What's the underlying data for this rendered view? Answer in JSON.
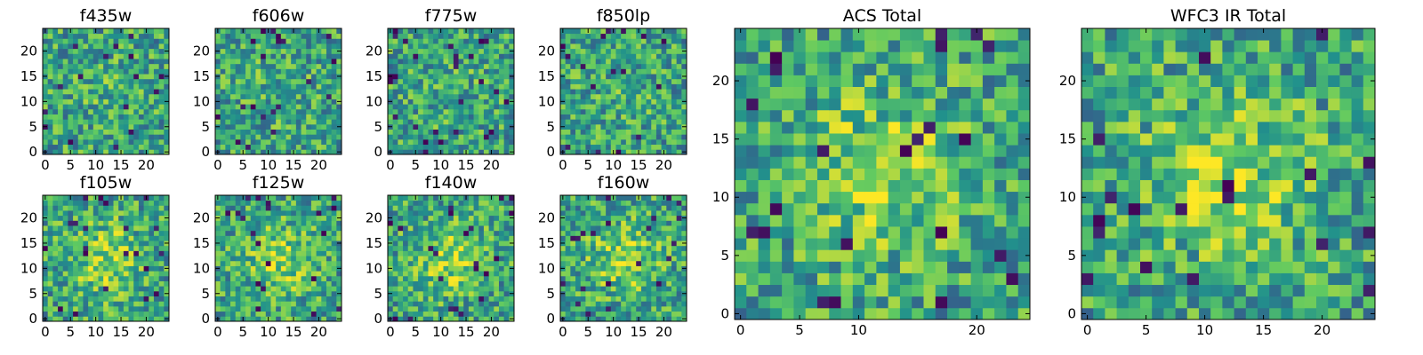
{
  "chart_data": {
    "type": "heatmap",
    "colormap": "viridis",
    "colormap_stops": [
      "#440154",
      "#3b528b",
      "#21918c",
      "#5ec962",
      "#fde725"
    ],
    "panels": [
      {
        "title": "f435w",
        "xticks": [
          0,
          5,
          10,
          15,
          20
        ],
        "yticks": [
          0,
          5,
          10,
          15,
          20
        ],
        "xlim": [
          -0.5,
          24.5
        ],
        "ylim": [
          -0.5,
          24.5
        ],
        "grid_size": 25,
        "seed": 11
      },
      {
        "title": "f606w",
        "xticks": [
          0,
          5,
          10,
          15,
          20
        ],
        "yticks": [
          0,
          5,
          10,
          15,
          20
        ],
        "xlim": [
          -0.5,
          24.5
        ],
        "ylim": [
          -0.5,
          24.5
        ],
        "grid_size": 25,
        "seed": 23
      },
      {
        "title": "f775w",
        "xticks": [
          0,
          5,
          10,
          15,
          20
        ],
        "yticks": [
          0,
          5,
          10,
          15,
          20
        ],
        "xlim": [
          -0.5,
          24.5
        ],
        "ylim": [
          -0.5,
          24.5
        ],
        "grid_size": 25,
        "seed": 37
      },
      {
        "title": "f850lp",
        "xticks": [
          0,
          5,
          10,
          15,
          20
        ],
        "yticks": [
          0,
          5,
          10,
          15,
          20
        ],
        "xlim": [
          -0.5,
          24.5
        ],
        "ylim": [
          -0.5,
          24.5
        ],
        "grid_size": 25,
        "seed": 41
      },
      {
        "title": "f105w",
        "xticks": [
          0,
          5,
          10,
          15,
          20
        ],
        "yticks": [
          0,
          5,
          10,
          15,
          20
        ],
        "xlim": [
          -0.5,
          24.5
        ],
        "ylim": [
          -0.5,
          24.5
        ],
        "grid_size": 25,
        "seed": 53
      },
      {
        "title": "f125w",
        "xticks": [
          0,
          5,
          10,
          15,
          20
        ],
        "yticks": [
          0,
          5,
          10,
          15,
          20
        ],
        "xlim": [
          -0.5,
          24.5
        ],
        "ylim": [
          -0.5,
          24.5
        ],
        "grid_size": 25,
        "seed": 67
      },
      {
        "title": "f140w",
        "xticks": [
          0,
          5,
          10,
          15,
          20
        ],
        "yticks": [
          0,
          5,
          10,
          15,
          20
        ],
        "xlim": [
          -0.5,
          24.5
        ],
        "ylim": [
          -0.5,
          24.5
        ],
        "grid_size": 25,
        "seed": 79
      },
      {
        "title": "f160w",
        "xticks": [
          0,
          5,
          10,
          15,
          20
        ],
        "yticks": [
          0,
          5,
          10,
          15,
          20
        ],
        "xlim": [
          -0.5,
          24.5
        ],
        "ylim": [
          -0.5,
          24.5
        ],
        "grid_size": 25,
        "seed": 83
      },
      {
        "title": "ACS Total",
        "xticks": [
          0,
          5,
          10,
          20
        ],
        "yticks": [
          0,
          5,
          10,
          15,
          20
        ],
        "xlim": [
          -0.5,
          24.5
        ],
        "ylim": [
          -0.5,
          24.5
        ],
        "grid_size": 25,
        "seed": 97
      },
      {
        "title": "WFC3 IR Total",
        "xticks": [
          0,
          5,
          10,
          15,
          20
        ],
        "yticks": [
          0,
          5,
          10,
          15,
          20
        ],
        "xlim": [
          -0.5,
          24.5
        ],
        "ylim": [
          -0.5,
          24.5
        ],
        "grid_size": 25,
        "seed": 101
      }
    ]
  }
}
